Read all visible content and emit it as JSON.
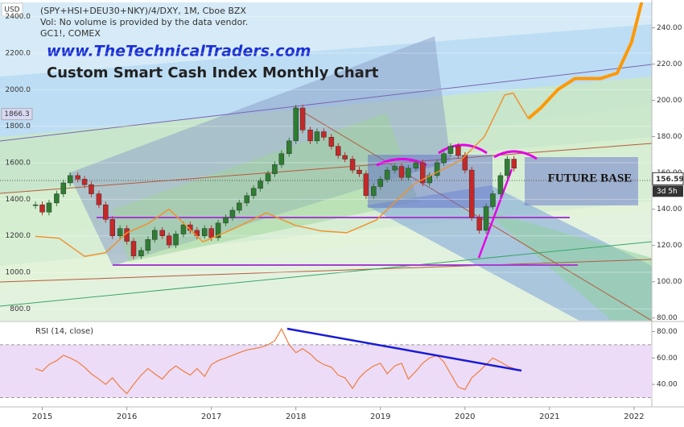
{
  "chart_data": {
    "type": "candlestick",
    "title": "(SPY+HSI+DEU30+NKY)/4/DXY, 1M, Cboe BZX",
    "notes": [
      "Vol: No volume is provided by the data vendor.",
      "GC1!, COMEX"
    ],
    "y_label": "USD",
    "website": "www.TheTechnicalTraders.com",
    "heading": "Custom Smart Cash Index Monthly Chart",
    "annotation": "FUTURE BASE",
    "countdown": "3d 5h",
    "up_color": "#2e7d32",
    "down_color": "#c62828",
    "x": [
      2014.92,
      2015.0,
      2015.08,
      2015.17,
      2015.25,
      2015.33,
      2015.42,
      2015.5,
      2015.58,
      2015.67,
      2015.75,
      2015.83,
      2015.92,
      2016.0,
      2016.08,
      2016.17,
      2016.25,
      2016.33,
      2016.42,
      2016.5,
      2016.58,
      2016.67,
      2016.75,
      2016.83,
      2016.92,
      2017.0,
      2017.08,
      2017.17,
      2017.25,
      2017.33,
      2017.42,
      2017.5,
      2017.58,
      2017.67,
      2017.75,
      2017.83,
      2017.92,
      2018.0,
      2018.08,
      2018.17,
      2018.25,
      2018.33,
      2018.42,
      2018.5,
      2018.58,
      2018.67,
      2018.75,
      2018.83,
      2018.92,
      2019.0,
      2019.08,
      2019.17,
      2019.25,
      2019.33,
      2019.42,
      2019.5,
      2019.58,
      2019.67,
      2019.75,
      2019.83,
      2019.92,
      2020.0,
      2020.08,
      2020.17,
      2020.25,
      2020.33,
      2020.42,
      2020.5,
      2020.58
    ],
    "close": [
      1370,
      1330,
      1380,
      1430,
      1490,
      1530,
      1510,
      1480,
      1430,
      1370,
      1290,
      1200,
      1240,
      1170,
      1090,
      1120,
      1180,
      1230,
      1200,
      1150,
      1210,
      1260,
      1230,
      1200,
      1240,
      1190,
      1270,
      1300,
      1340,
      1380,
      1420,
      1460,
      1500,
      1540,
      1590,
      1650,
      1720,
      1900,
      1780,
      1720,
      1770,
      1740,
      1690,
      1640,
      1620,
      1560,
      1540,
      1420,
      1470,
      1510,
      1560,
      1580,
      1520,
      1570,
      1600,
      1490,
      1530,
      1600,
      1650,
      1690,
      1640,
      1560,
      1300,
      1230,
      1360,
      1430,
      1530,
      1620,
      1570
    ],
    "xlim": [
      2014.5,
      2022.21
    ],
    "xticks": [
      2015,
      2016,
      2017,
      2018,
      2019,
      2020,
      2021,
      2022
    ],
    "ylim": [
      740,
      2478
    ],
    "yticks": [
      {
        "value": 800,
        "label": "800.0"
      },
      {
        "value": 1000,
        "label": "1000.0"
      },
      {
        "value": 1200,
        "label": "1200.0"
      },
      {
        "value": 1400,
        "label": "1400.0"
      },
      {
        "value": 1600,
        "label": "1600.0"
      },
      {
        "value": 1800,
        "label": "1800.0"
      },
      {
        "value": 2000,
        "label": "2000.0"
      },
      {
        "value": 2200,
        "label": "2200.0"
      },
      {
        "value": 2400,
        "label": "2400.0"
      }
    ],
    "y_marker": {
      "value": 1866.3,
      "label": "1866.3"
    },
    "y2lim": [
      79,
      254
    ],
    "y2ticks": [
      {
        "value": 80,
        "label": "80.00"
      },
      {
        "value": 100,
        "label": "100.00"
      },
      {
        "value": 120,
        "label": "120.00"
      },
      {
        "value": 140,
        "label": "140.00"
      },
      {
        "value": 160,
        "label": "160.00"
      },
      {
        "value": 180,
        "label": "180.00"
      },
      {
        "value": 200,
        "label": "200.00"
      },
      {
        "value": 220,
        "label": "220.00"
      },
      {
        "value": 240,
        "label": "240.00"
      }
    ],
    "y2_marker": 156.59,
    "overlays": [
      {
        "color": "#f0922b",
        "width": 1.5,
        "x": [
          2014.92,
          2015.2,
          2015.5,
          2015.75,
          2016.0,
          2016.25,
          2016.5,
          2016.9,
          2017.3,
          2017.65,
          2018.0,
          2018.3,
          2018.6,
          2018.95,
          2019.4,
          2019.95,
          2020.23,
          2020.47,
          2020.57,
          2020.75
        ],
        "values": [
          125,
          124,
          114,
          116,
          127,
          132,
          140,
          122,
          130,
          138,
          131,
          128,
          127,
          134,
          154,
          167,
          180,
          203,
          204,
          190
        ]
      },
      {
        "color": "#ff9800",
        "width": 4,
        "x": [
          2020.75,
          2020.9,
          2021.1,
          2021.3,
          2021.6,
          2021.8,
          2021.97,
          2022.1
        ],
        "values": [
          190,
          196,
          206,
          212,
          212,
          215,
          232,
          256
        ]
      }
    ],
    "rsi": {
      "title": "RSI (14, close)",
      "color": "#f07c3c",
      "values": [
        52,
        50,
        55,
        58,
        62,
        60,
        57,
        53,
        48,
        44,
        40,
        45,
        38,
        33,
        40,
        47,
        52,
        48,
        44,
        50,
        54,
        50,
        47,
        52,
        46,
        55,
        58,
        60,
        62,
        64,
        66,
        67,
        68,
        70,
        73,
        82,
        70,
        64,
        67,
        63,
        58,
        55,
        53,
        47,
        45,
        37,
        45,
        50,
        54,
        56,
        48,
        54,
        56,
        44,
        50,
        56,
        60,
        62,
        57,
        48,
        38,
        36,
        45,
        50,
        55,
        60,
        57,
        54,
        52
      ],
      "ylim": [
        23,
        87
      ],
      "yticks": [
        {
          "value": 40,
          "label": "40.00"
        },
        {
          "value": 60,
          "label": "60.00"
        },
        {
          "value": 80,
          "label": "80.00"
        }
      ],
      "band": [
        30,
        70
      ]
    }
  }
}
